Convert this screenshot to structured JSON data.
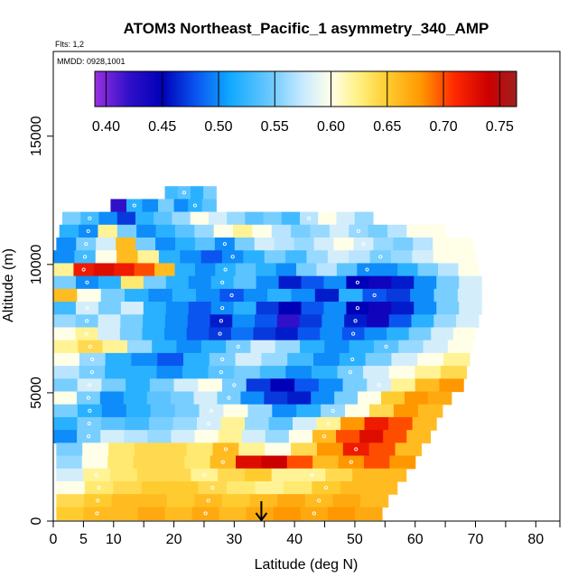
{
  "chart_data": {
    "type": "heatmap",
    "title": "ATOM3 Northeast_Pacific_1 asymmetry_340_AMP",
    "flights_label": "Flts: 1,2",
    "dates_label": "MMDD: 0928,1001",
    "xlabel": "Latitude (deg N)",
    "ylabel": "Altitude (m)",
    "xlim": [
      0,
      84
    ],
    "ylim": [
      0,
      18300
    ],
    "x_ticks": [
      0,
      5,
      10,
      20,
      30,
      40,
      50,
      60,
      70,
      80
    ],
    "x_minor_ticks": [
      15,
      25,
      35,
      45,
      55,
      65,
      75,
      84
    ],
    "y_ticks": [
      0,
      5000,
      10000,
      15000
    ],
    "colorbar": {
      "range": [
        0.39,
        0.765
      ],
      "tick_values": [
        0.4,
        0.45,
        0.5,
        0.55,
        0.6,
        0.65,
        0.7,
        0.75
      ],
      "tick_labels": [
        "0.40",
        "0.45",
        "0.50",
        "0.55",
        "0.60",
        "0.65",
        "0.70",
        "0.75"
      ],
      "stops": [
        {
          "v": 0.39,
          "color": "#9a30e0"
        },
        {
          "v": 0.42,
          "color": "#3010c8"
        },
        {
          "v": 0.45,
          "color": "#0000b8"
        },
        {
          "v": 0.48,
          "color": "#0a55f0"
        },
        {
          "v": 0.51,
          "color": "#10a8ff"
        },
        {
          "v": 0.545,
          "color": "#68c8ff"
        },
        {
          "v": 0.575,
          "color": "#c8eaff"
        },
        {
          "v": 0.6,
          "color": "#ffffe8"
        },
        {
          "v": 0.625,
          "color": "#fff080"
        },
        {
          "v": 0.65,
          "color": "#ffcc30"
        },
        {
          "v": 0.68,
          "color": "#ff9800"
        },
        {
          "v": 0.71,
          "color": "#ff2800"
        },
        {
          "v": 0.74,
          "color": "#cc0000"
        },
        {
          "v": 0.765,
          "color": "#a02020"
        }
      ]
    },
    "rows": [
      {
        "alt": 12800,
        "x0": 18.5,
        "x1": 27,
        "values": [
          0.53,
          0.54,
          0.52,
          0.55
        ]
      },
      {
        "alt": 12300,
        "x0": 9.5,
        "x1": 20,
        "values": [
          0.42,
          0.52,
          0.5,
          0.55
        ]
      },
      {
        "alt": 12300,
        "x0": 20,
        "x1": 27,
        "values": [
          0.5,
          0.52,
          0.54
        ]
      },
      {
        "alt": 11800,
        "x0": 1.5,
        "x1": 53,
        "values": [
          0.55,
          0.53,
          0.5,
          0.47,
          0.52,
          0.54,
          0.56,
          0.6,
          0.58,
          0.56,
          0.54,
          0.55,
          0.53,
          0.57,
          0.6,
          0.58,
          0.56
        ]
      },
      {
        "alt": 11300,
        "x0": 1,
        "x1": 65,
        "values": [
          0.52,
          0.5,
          0.62,
          0.55,
          0.5,
          0.52,
          0.54,
          0.56,
          0.6,
          0.62,
          0.6,
          0.57,
          0.55,
          0.56,
          0.58,
          0.56,
          0.55,
          0.57,
          0.6,
          0.6
        ]
      },
      {
        "alt": 10800,
        "x0": 0.5,
        "x1": 69.5,
        "values": [
          0.5,
          0.55,
          0.58,
          0.66,
          0.55,
          0.5,
          0.52,
          0.54,
          0.5,
          0.55,
          0.58,
          0.57,
          0.56,
          0.58,
          0.6,
          0.58,
          0.56,
          0.55,
          0.57,
          0.6,
          0.6
        ]
      },
      {
        "alt": 10300,
        "x0": 0,
        "x1": 70,
        "values": [
          0.5,
          0.53,
          0.6,
          0.66,
          0.62,
          0.52,
          0.5,
          0.48,
          0.5,
          0.52,
          0.55,
          0.53,
          0.56,
          0.58,
          0.57,
          0.55,
          0.56,
          0.58,
          0.6,
          0.6
        ]
      },
      {
        "alt": 9800,
        "x0": 0,
        "x1": 70.5,
        "values": [
          0.62,
          0.72,
          0.73,
          0.72,
          0.7,
          0.66,
          0.52,
          0.5,
          0.52,
          0.54,
          0.52,
          0.5,
          0.55,
          0.57,
          0.54,
          0.5,
          0.5,
          0.52,
          0.55,
          0.57,
          0.6
        ]
      },
      {
        "alt": 9300,
        "x0": 0,
        "x1": 71,
        "values": [
          0.55,
          0.5,
          0.52,
          0.63,
          0.55,
          0.52,
          0.5,
          0.52,
          0.54,
          0.5,
          0.46,
          0.48,
          0.5,
          0.45,
          0.44,
          0.46,
          0.5,
          0.55,
          0.58
        ]
      },
      {
        "alt": 8800,
        "x0": 0,
        "x1": 71,
        "values": [
          0.66,
          0.6,
          0.55,
          0.52,
          0.5,
          0.52,
          0.5,
          0.48,
          0.5,
          0.52,
          0.5,
          0.46,
          0.52,
          0.48,
          0.47,
          0.5,
          0.55,
          0.58
        ]
      },
      {
        "alt": 8300,
        "x0": 0,
        "x1": 71,
        "values": [
          0.53,
          0.58,
          0.55,
          0.58,
          0.52,
          0.5,
          0.48,
          0.5,
          0.52,
          0.47,
          0.45,
          0.48,
          0.5,
          0.45,
          0.44,
          0.46,
          0.5,
          0.55,
          0.58
        ]
      },
      {
        "alt": 7800,
        "x0": 0,
        "x1": 70.5,
        "values": [
          0.56,
          0.55,
          0.58,
          0.55,
          0.52,
          0.5,
          0.48,
          0.46,
          0.5,
          0.48,
          0.42,
          0.47,
          0.5,
          0.46,
          0.44,
          0.48,
          0.52,
          0.56,
          0.58
        ]
      },
      {
        "alt": 7300,
        "x0": 0,
        "x1": 70,
        "values": [
          0.6,
          0.62,
          0.58,
          0.55,
          0.52,
          0.5,
          0.48,
          0.47,
          0.49,
          0.47,
          0.46,
          0.48,
          0.5,
          0.48,
          0.5,
          0.52,
          0.55,
          0.58,
          0.6
        ]
      },
      {
        "alt": 6800,
        "x0": 0,
        "x1": 69.5,
        "values": [
          0.62,
          0.64,
          0.62,
          0.56,
          0.52,
          0.5,
          0.52,
          0.55,
          0.58,
          0.56,
          0.52,
          0.5,
          0.52,
          0.54,
          0.56,
          0.58,
          0.6
        ]
      },
      {
        "alt": 6300,
        "x0": 0,
        "x1": 69,
        "values": [
          0.6,
          0.56,
          0.52,
          0.5,
          0.48,
          0.52,
          0.55,
          0.58,
          0.56,
          0.53,
          0.5,
          0.52,
          0.55,
          0.58,
          0.6,
          0.62
        ]
      },
      {
        "alt": 5800,
        "x0": 0,
        "x1": 68.5,
        "values": [
          0.57,
          0.55,
          0.52,
          0.52,
          0.5,
          0.52,
          0.54,
          0.55,
          0.53,
          0.5,
          0.52,
          0.55,
          0.58,
          0.6,
          0.62,
          0.64
        ]
      },
      {
        "alt": 5300,
        "x0": 0,
        "x1": 68,
        "values": [
          0.55,
          0.58,
          0.55,
          0.52,
          0.55,
          0.58,
          0.6,
          0.55,
          0.47,
          0.45,
          0.48,
          0.5,
          0.55,
          0.58,
          0.62,
          0.66,
          0.68
        ]
      },
      {
        "alt": 4800,
        "x0": 0,
        "x1": 66,
        "values": [
          0.6,
          0.55,
          0.5,
          0.52,
          0.54,
          0.55,
          0.58,
          0.55,
          0.5,
          0.47,
          0.46,
          0.5,
          0.55,
          0.6,
          0.65,
          0.68,
          0.67
        ]
      },
      {
        "alt": 4300,
        "x0": 0,
        "x1": 64.5,
        "values": [
          0.55,
          0.52,
          0.5,
          0.52,
          0.54,
          0.55,
          0.58,
          0.6,
          0.56,
          0.5,
          0.52,
          0.56,
          0.6,
          0.64,
          0.68,
          0.66
        ]
      },
      {
        "alt": 3800,
        "x0": 0,
        "x1": 63.5,
        "values": [
          0.52,
          0.55,
          0.54,
          0.53,
          0.55,
          0.56,
          0.58,
          0.62,
          0.56,
          0.54,
          0.58,
          0.62,
          0.68,
          0.72,
          0.7,
          0.66
        ]
      },
      {
        "alt": 3300,
        "x0": 0,
        "x1": 62.5,
        "values": [
          0.5,
          0.55,
          0.58,
          0.57,
          0.56,
          0.58,
          0.6,
          0.62,
          0.58,
          0.56,
          0.6,
          0.66,
          0.7,
          0.73,
          0.7,
          0.66
        ]
      },
      {
        "alt": 2800,
        "x0": 0.5,
        "x1": 61,
        "values": [
          0.55,
          0.6,
          0.63,
          0.64,
          0.64,
          0.63,
          0.66,
          0.62,
          0.6,
          0.64,
          0.68,
          0.72,
          0.7,
          0.66
        ]
      },
      {
        "alt": 2300,
        "x0": 0.5,
        "x1": 60,
        "values": [
          0.56,
          0.6,
          0.63,
          0.64,
          0.64,
          0.63,
          0.66,
          0.73,
          0.74,
          0.7,
          0.66,
          0.68,
          0.7,
          0.68
        ]
      },
      {
        "alt": 1800,
        "x0": 0.5,
        "x1": 58.5,
        "values": [
          0.58,
          0.62,
          0.63,
          0.64,
          0.64,
          0.62,
          0.64,
          0.65,
          0.62,
          0.62,
          0.64,
          0.66,
          0.66
        ]
      },
      {
        "alt": 1300,
        "x0": 0.5,
        "x1": 57,
        "values": [
          0.6,
          0.63,
          0.64,
          0.65,
          0.65,
          0.64,
          0.63,
          0.62,
          0.63,
          0.65,
          0.66,
          0.66
        ]
      },
      {
        "alt": 800,
        "x0": 0.5,
        "x1": 55.5,
        "values": [
          0.64,
          0.65,
          0.66,
          0.66,
          0.65,
          0.66,
          0.65,
          0.66,
          0.67,
          0.66,
          0.67,
          0.66
        ]
      },
      {
        "alt": 300,
        "x0": 0.5,
        "x1": 54.5,
        "values": [
          0.65,
          0.66,
          0.66,
          0.67,
          0.66,
          0.67,
          0.66,
          0.67,
          0.68,
          0.67,
          0.68,
          0.67
        ]
      }
    ],
    "arrow_latitude": 34.5
  }
}
